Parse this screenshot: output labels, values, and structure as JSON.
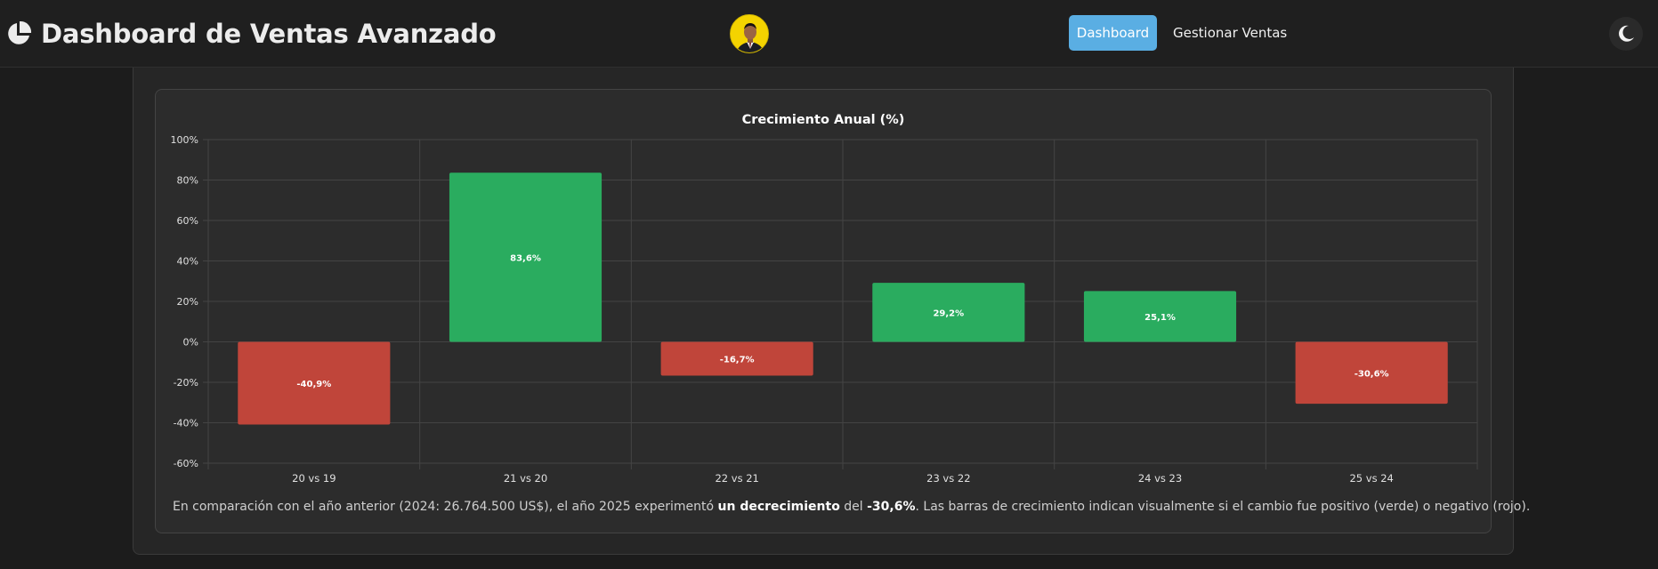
{
  "header": {
    "title": "Dashboard de Ventas Avanzado",
    "brand_icon": "pie-chart-icon",
    "avatar_icon": "user-avatar",
    "nav": [
      {
        "label": "Dashboard",
        "active": true
      },
      {
        "label": "Gestionar Ventas",
        "active": false
      }
    ],
    "theme_toggle_icon": "moon-icon"
  },
  "colors": {
    "positive": "#2aac5f",
    "negative": "#c0453a",
    "accent": "#5aaee3"
  },
  "chart_data": {
    "type": "bar",
    "title": "Crecimiento Anual (%)",
    "categories": [
      "20 vs 19",
      "21 vs 20",
      "22 vs 21",
      "23 vs 22",
      "24 vs 23",
      "25 vs 24"
    ],
    "values": [
      -40.9,
      83.6,
      -16.7,
      29.2,
      25.1,
      -30.6
    ],
    "data_labels": [
      "-40,9%",
      "83,6%",
      "-16,7%",
      "29,2%",
      "25,1%",
      "-30,6%"
    ],
    "ylim": [
      -60,
      100
    ],
    "yticks": [
      100,
      80,
      60,
      40,
      20,
      0,
      -20,
      -40,
      -60
    ],
    "ytick_labels": [
      "100%",
      "80%",
      "60%",
      "40%",
      "20%",
      "0%",
      "-20%",
      "-40%",
      "-60%"
    ],
    "grid": true,
    "legend": false
  },
  "summary": {
    "part1": "En comparación con el año anterior (2024: 26.764.500 US$), el año 2025 experimentó ",
    "bold1": "un decrecimiento",
    "part2": " del ",
    "bold2": "-30,6%",
    "part3": ". Las barras de crecimiento indican visualmente si el cambio fue positivo (verde) o negativo (rojo)."
  }
}
